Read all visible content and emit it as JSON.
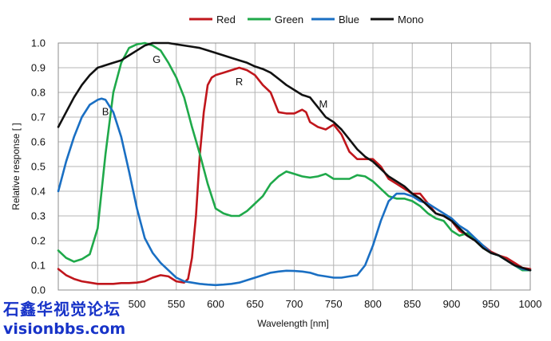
{
  "chart_data": {
    "type": "line",
    "title": "",
    "xlabel": "Wavelength [nm]",
    "ylabel": "Relative response [ ]",
    "xlim": [
      400,
      1000
    ],
    "ylim": [
      0,
      1.0
    ],
    "xticks": [
      500,
      550,
      600,
      650,
      700,
      750,
      800,
      850,
      900,
      950,
      1000
    ],
    "yticks": [
      0.0,
      0.1,
      0.2,
      0.3,
      0.4,
      0.5,
      0.6,
      0.7,
      0.8,
      0.9,
      1.0
    ],
    "grid": true,
    "legend": "top",
    "series": [
      {
        "name": "Red",
        "color": "#c0161c",
        "x": [
          400,
          410,
          420,
          430,
          440,
          450,
          460,
          470,
          480,
          490,
          500,
          510,
          520,
          530,
          540,
          550,
          560,
          565,
          570,
          575,
          580,
          585,
          590,
          595,
          600,
          610,
          620,
          630,
          640,
          650,
          660,
          670,
          680,
          690,
          700,
          710,
          715,
          720,
          730,
          740,
          750,
          760,
          770,
          780,
          790,
          800,
          810,
          820,
          830,
          840,
          850,
          860,
          870,
          880,
          890,
          900,
          910,
          920,
          930,
          940,
          950,
          960,
          970,
          980,
          990,
          1000
        ],
        "values": [
          0.085,
          0.06,
          0.045,
          0.035,
          0.03,
          0.025,
          0.025,
          0.025,
          0.028,
          0.028,
          0.03,
          0.035,
          0.05,
          0.06,
          0.055,
          0.035,
          0.03,
          0.045,
          0.13,
          0.3,
          0.55,
          0.72,
          0.83,
          0.86,
          0.87,
          0.88,
          0.89,
          0.9,
          0.89,
          0.87,
          0.83,
          0.8,
          0.72,
          0.715,
          0.715,
          0.73,
          0.72,
          0.68,
          0.66,
          0.65,
          0.67,
          0.63,
          0.56,
          0.53,
          0.53,
          0.53,
          0.5,
          0.45,
          0.43,
          0.41,
          0.39,
          0.39,
          0.35,
          0.31,
          0.3,
          0.28,
          0.24,
          0.22,
          0.2,
          0.18,
          0.155,
          0.14,
          0.13,
          0.11,
          0.09,
          0.085
        ]
      },
      {
        "name": "Green",
        "color": "#1fa94a",
        "x": [
          400,
          410,
          420,
          430,
          440,
          450,
          460,
          470,
          480,
          490,
          500,
          510,
          520,
          530,
          540,
          550,
          560,
          570,
          580,
          590,
          600,
          610,
          620,
          630,
          640,
          650,
          660,
          670,
          680,
          690,
          700,
          710,
          720,
          730,
          740,
          750,
          760,
          770,
          780,
          790,
          800,
          810,
          820,
          830,
          840,
          850,
          860,
          870,
          880,
          890,
          900,
          910,
          920,
          930,
          940,
          950,
          960,
          970,
          980,
          990,
          1000
        ],
        "values": [
          0.16,
          0.13,
          0.115,
          0.125,
          0.145,
          0.25,
          0.55,
          0.8,
          0.92,
          0.98,
          0.995,
          1.0,
          0.99,
          0.97,
          0.92,
          0.86,
          0.78,
          0.66,
          0.55,
          0.43,
          0.33,
          0.31,
          0.3,
          0.3,
          0.32,
          0.35,
          0.38,
          0.43,
          0.46,
          0.48,
          0.47,
          0.46,
          0.455,
          0.46,
          0.47,
          0.45,
          0.45,
          0.45,
          0.465,
          0.46,
          0.44,
          0.41,
          0.38,
          0.37,
          0.37,
          0.36,
          0.34,
          0.31,
          0.29,
          0.28,
          0.24,
          0.22,
          0.23,
          0.2,
          0.17,
          0.15,
          0.14,
          0.12,
          0.1,
          0.08,
          0.08
        ]
      },
      {
        "name": "Blue",
        "color": "#1a6fc3",
        "x": [
          400,
          410,
          420,
          430,
          440,
          450,
          455,
          460,
          470,
          480,
          490,
          500,
          510,
          520,
          530,
          540,
          550,
          560,
          570,
          580,
          590,
          600,
          610,
          620,
          630,
          640,
          650,
          660,
          670,
          680,
          690,
          700,
          710,
          720,
          730,
          740,
          750,
          760,
          770,
          780,
          790,
          800,
          810,
          820,
          830,
          840,
          850,
          860,
          870,
          880,
          890,
          900,
          910,
          920,
          930,
          940,
          950,
          960,
          970,
          980,
          990,
          1000
        ],
        "values": [
          0.4,
          0.52,
          0.62,
          0.7,
          0.75,
          0.77,
          0.775,
          0.77,
          0.72,
          0.62,
          0.48,
          0.33,
          0.21,
          0.15,
          0.11,
          0.08,
          0.05,
          0.035,
          0.03,
          0.025,
          0.022,
          0.02,
          0.022,
          0.025,
          0.03,
          0.04,
          0.05,
          0.06,
          0.07,
          0.075,
          0.078,
          0.077,
          0.075,
          0.07,
          0.06,
          0.055,
          0.05,
          0.05,
          0.055,
          0.06,
          0.1,
          0.18,
          0.28,
          0.36,
          0.39,
          0.39,
          0.38,
          0.36,
          0.35,
          0.33,
          0.31,
          0.29,
          0.26,
          0.24,
          0.21,
          0.18,
          0.15,
          0.14,
          0.12,
          0.1,
          0.085,
          0.08
        ]
      },
      {
        "name": "Mono",
        "color": "#111111",
        "x": [
          400,
          410,
          420,
          430,
          440,
          450,
          460,
          470,
          480,
          490,
          500,
          510,
          520,
          530,
          540,
          550,
          560,
          570,
          580,
          590,
          600,
          610,
          620,
          630,
          640,
          650,
          660,
          670,
          680,
          690,
          700,
          710,
          720,
          730,
          740,
          750,
          760,
          770,
          780,
          790,
          800,
          810,
          820,
          830,
          840,
          850,
          860,
          870,
          880,
          890,
          900,
          910,
          920,
          930,
          940,
          950,
          960,
          970,
          980,
          990,
          1000
        ],
        "values": [
          0.66,
          0.72,
          0.78,
          0.83,
          0.87,
          0.9,
          0.91,
          0.92,
          0.93,
          0.95,
          0.97,
          0.99,
          1.0,
          1.0,
          1.0,
          0.995,
          0.99,
          0.985,
          0.98,
          0.97,
          0.96,
          0.95,
          0.94,
          0.93,
          0.92,
          0.905,
          0.895,
          0.88,
          0.855,
          0.83,
          0.81,
          0.79,
          0.78,
          0.74,
          0.7,
          0.68,
          0.65,
          0.61,
          0.57,
          0.54,
          0.52,
          0.49,
          0.46,
          0.44,
          0.42,
          0.39,
          0.37,
          0.34,
          0.31,
          0.3,
          0.28,
          0.25,
          0.22,
          0.2,
          0.17,
          0.15,
          0.14,
          0.12,
          0.1,
          0.09,
          0.08
        ]
      }
    ],
    "annotations": [
      {
        "text": "B",
        "x": 460,
        "y": 0.725
      },
      {
        "text": "G",
        "x": 525,
        "y": 0.935
      },
      {
        "text": "R",
        "x": 630,
        "y": 0.845
      },
      {
        "text": "M",
        "x": 737,
        "y": 0.755
      }
    ]
  },
  "watermark": {
    "line1": "石鑫华视觉论坛",
    "line2": "visionbbs.com"
  }
}
